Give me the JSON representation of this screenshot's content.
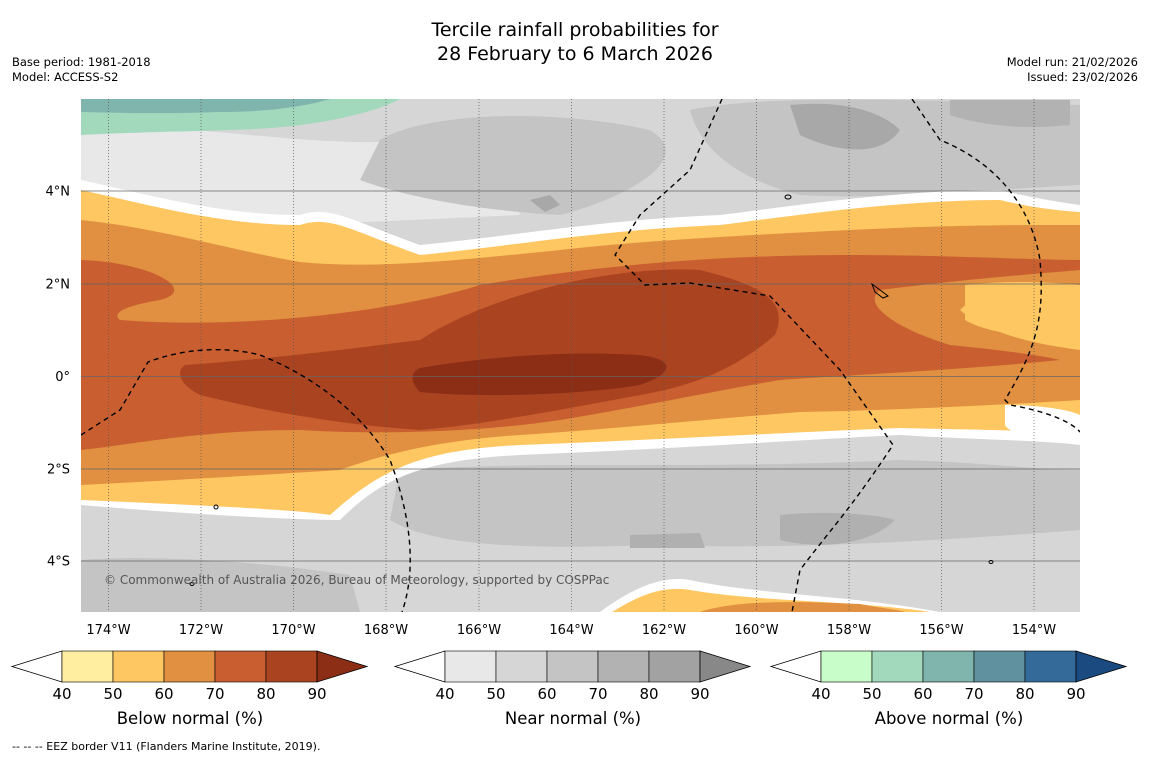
{
  "title_line1": "Tercile rainfall probabilities for",
  "title_line2": "28 February to 6 March 2026",
  "base_period": "Base period: 1981-2018",
  "model": "Model: ACCESS-S2",
  "model_run": "Model run: 21/02/2026",
  "issued": "Issued: 23/02/2026",
  "copyright": "© Commonwealth of Australia 2026, Bureau of Meteorology, supported by COSPPac",
  "footnote": "--  --  -- EEZ border V11 (Flanders Marine Institute, 2019).",
  "map": {
    "lon_labels": [
      "174°W",
      "172°W",
      "170°W",
      "168°W",
      "166°W",
      "164°W",
      "162°W",
      "160°W",
      "158°W",
      "156°W",
      "154°W"
    ],
    "lat_labels": [
      "4°N",
      "2°N",
      "0°",
      "2°S",
      "4°S"
    ]
  },
  "colorbars": [
    {
      "id": "below",
      "title": "Below normal (%)",
      "ticks": [
        "40",
        "50",
        "60",
        "70",
        "80",
        "90"
      ],
      "colors": [
        "#ffeda0",
        "#fec761",
        "#e09040",
        "#c95f30",
        "#aa4420"
      ],
      "under": "#ffffff",
      "over": "#8c2d16"
    },
    {
      "id": "near",
      "title": "Near normal (%)",
      "ticks": [
        "40",
        "50",
        "60",
        "70",
        "80",
        "90"
      ],
      "colors": [
        "#e8e8e8",
        "#d6d6d6",
        "#c4c4c4",
        "#b2b2b2",
        "#a2a2a2"
      ],
      "under": "#ffffff",
      "over": "#888888"
    },
    {
      "id": "above",
      "title": "Above normal (%)",
      "ticks": [
        "40",
        "50",
        "60",
        "70",
        "80",
        "90"
      ],
      "colors": [
        "#c8fcc8",
        "#a2d9bd",
        "#80b5ae",
        "#5f929e",
        "#336a9a"
      ],
      "under": "#ffffff",
      "over": "#1b4a80"
    }
  ]
}
